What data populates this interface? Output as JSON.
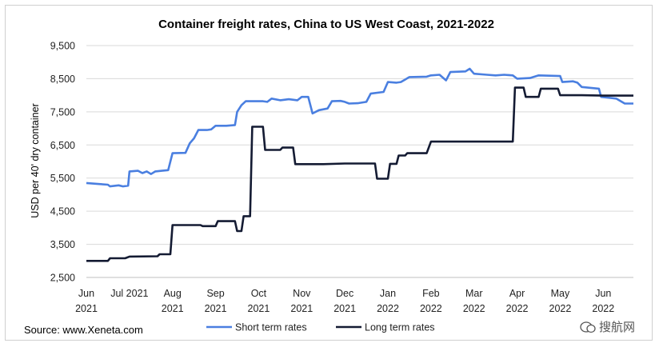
{
  "chart_data": {
    "type": "line",
    "title": "Container freight rates, China to US West Coast, 2021-2022",
    "xlabel": "",
    "ylabel": "USD per 40' dry container",
    "ylim": [
      2500,
      9500
    ],
    "yticks": [
      "2,500",
      "3,500",
      "4,500",
      "5,500",
      "6,500",
      "7,500",
      "8,500",
      "9,500"
    ],
    "x_range": [
      2021.0,
      2022.52
    ],
    "xtick_labels": [
      {
        "month": "Jun",
        "year": "2021"
      },
      {
        "month": "Jul 2021",
        "year": ""
      },
      {
        "month": "Aug",
        "year": "2021"
      },
      {
        "month": "Sep",
        "year": "2021"
      },
      {
        "month": "Oct",
        "year": "2021"
      },
      {
        "month": "Nov",
        "year": "2021"
      },
      {
        "month": "Dec",
        "year": "2021"
      },
      {
        "month": "Jan",
        "year": "2022"
      },
      {
        "month": "Feb",
        "year": "2022"
      },
      {
        "month": "Mar",
        "year": "2022"
      },
      {
        "month": "Apr",
        "year": "2022"
      },
      {
        "month": "May",
        "year": "2022"
      },
      {
        "month": "Jun",
        "year": "2022"
      }
    ],
    "grid": true,
    "legend_placement": "bottom",
    "series": [
      {
        "name": "Short term rates",
        "color": "#4a7fe0",
        "points": [
          [
            0.0,
            5350
          ],
          [
            0.3,
            5320
          ],
          [
            0.5,
            5300
          ],
          [
            0.55,
            5250
          ],
          [
            0.75,
            5280
          ],
          [
            0.85,
            5250
          ],
          [
            0.97,
            5270
          ],
          [
            1.0,
            5700
          ],
          [
            1.2,
            5720
          ],
          [
            1.3,
            5650
          ],
          [
            1.4,
            5700
          ],
          [
            1.5,
            5620
          ],
          [
            1.6,
            5700
          ],
          [
            1.75,
            5720
          ],
          [
            1.9,
            5740
          ],
          [
            2.0,
            6250
          ],
          [
            2.3,
            6260
          ],
          [
            2.4,
            6550
          ],
          [
            2.5,
            6700
          ],
          [
            2.6,
            6950
          ],
          [
            2.8,
            6950
          ],
          [
            2.9,
            6970
          ],
          [
            3.0,
            7080
          ],
          [
            3.25,
            7080
          ],
          [
            3.45,
            7100
          ],
          [
            3.5,
            7500
          ],
          [
            3.6,
            7700
          ],
          [
            3.7,
            7820
          ],
          [
            4.1,
            7820
          ],
          [
            4.2,
            7800
          ],
          [
            4.3,
            7900
          ],
          [
            4.5,
            7850
          ],
          [
            4.7,
            7880
          ],
          [
            4.9,
            7850
          ],
          [
            5.0,
            7950
          ],
          [
            5.15,
            7950
          ],
          [
            5.25,
            7450
          ],
          [
            5.4,
            7550
          ],
          [
            5.6,
            7600
          ],
          [
            5.7,
            7820
          ],
          [
            5.9,
            7830
          ],
          [
            6.0,
            7800
          ],
          [
            6.1,
            7750
          ],
          [
            6.3,
            7760
          ],
          [
            6.5,
            7800
          ],
          [
            6.6,
            8050
          ],
          [
            6.9,
            8100
          ],
          [
            7.0,
            8400
          ],
          [
            7.2,
            8380
          ],
          [
            7.3,
            8400
          ],
          [
            7.5,
            8550
          ],
          [
            7.9,
            8560
          ],
          [
            8.0,
            8600
          ],
          [
            8.2,
            8620
          ],
          [
            8.35,
            8450
          ],
          [
            8.45,
            8700
          ],
          [
            8.8,
            8720
          ],
          [
            8.9,
            8800
          ],
          [
            9.0,
            8650
          ],
          [
            9.3,
            8620
          ],
          [
            9.5,
            8600
          ],
          [
            9.7,
            8620
          ],
          [
            9.9,
            8600
          ],
          [
            10.0,
            8500
          ],
          [
            10.3,
            8520
          ],
          [
            10.5,
            8600
          ],
          [
            11.0,
            8580
          ],
          [
            11.05,
            8400
          ],
          [
            11.3,
            8420
          ],
          [
            11.4,
            8380
          ],
          [
            11.5,
            8250
          ],
          [
            11.9,
            8200
          ],
          [
            11.95,
            7950
          ],
          [
            12.3,
            7900
          ],
          [
            12.5,
            7750
          ],
          [
            12.7,
            7750
          ]
        ]
      },
      {
        "name": "Long term rates",
        "color": "#141b33",
        "points": [
          [
            0.0,
            3000
          ],
          [
            0.5,
            3000
          ],
          [
            0.55,
            3080
          ],
          [
            0.9,
            3080
          ],
          [
            1.0,
            3130
          ],
          [
            1.65,
            3140
          ],
          [
            1.7,
            3200
          ],
          [
            1.95,
            3200
          ],
          [
            2.0,
            4080
          ],
          [
            2.65,
            4080
          ],
          [
            2.7,
            4050
          ],
          [
            3.0,
            4050
          ],
          [
            3.05,
            4200
          ],
          [
            3.45,
            4200
          ],
          [
            3.5,
            3900
          ],
          [
            3.6,
            3900
          ],
          [
            3.65,
            4350
          ],
          [
            3.8,
            4350
          ],
          [
            3.85,
            7050
          ],
          [
            4.1,
            7050
          ],
          [
            4.15,
            6350
          ],
          [
            4.5,
            6350
          ],
          [
            4.55,
            6420
          ],
          [
            4.8,
            6420
          ],
          [
            4.85,
            5920
          ],
          [
            5.0,
            5920
          ],
          [
            5.5,
            5920
          ],
          [
            6.0,
            5940
          ],
          [
            6.4,
            5940
          ],
          [
            6.7,
            5940
          ],
          [
            6.75,
            5480
          ],
          [
            7.0,
            5480
          ],
          [
            7.05,
            5930
          ],
          [
            7.2,
            5930
          ],
          [
            7.25,
            6180
          ],
          [
            7.4,
            6180
          ],
          [
            7.45,
            6250
          ],
          [
            7.9,
            6250
          ],
          [
            8.0,
            6600
          ],
          [
            8.5,
            6600
          ],
          [
            9.0,
            6600
          ],
          [
            9.5,
            6600
          ],
          [
            9.9,
            6600
          ],
          [
            9.95,
            8230
          ],
          [
            10.15,
            8230
          ],
          [
            10.2,
            7950
          ],
          [
            10.5,
            7950
          ],
          [
            10.55,
            8200
          ],
          [
            10.95,
            8200
          ],
          [
            11.0,
            8000
          ],
          [
            11.5,
            8000
          ],
          [
            12.0,
            7990
          ],
          [
            12.7,
            7990
          ]
        ]
      }
    ]
  },
  "source_text": "Source: www.Xeneta.com",
  "watermark_text": "搜航网"
}
